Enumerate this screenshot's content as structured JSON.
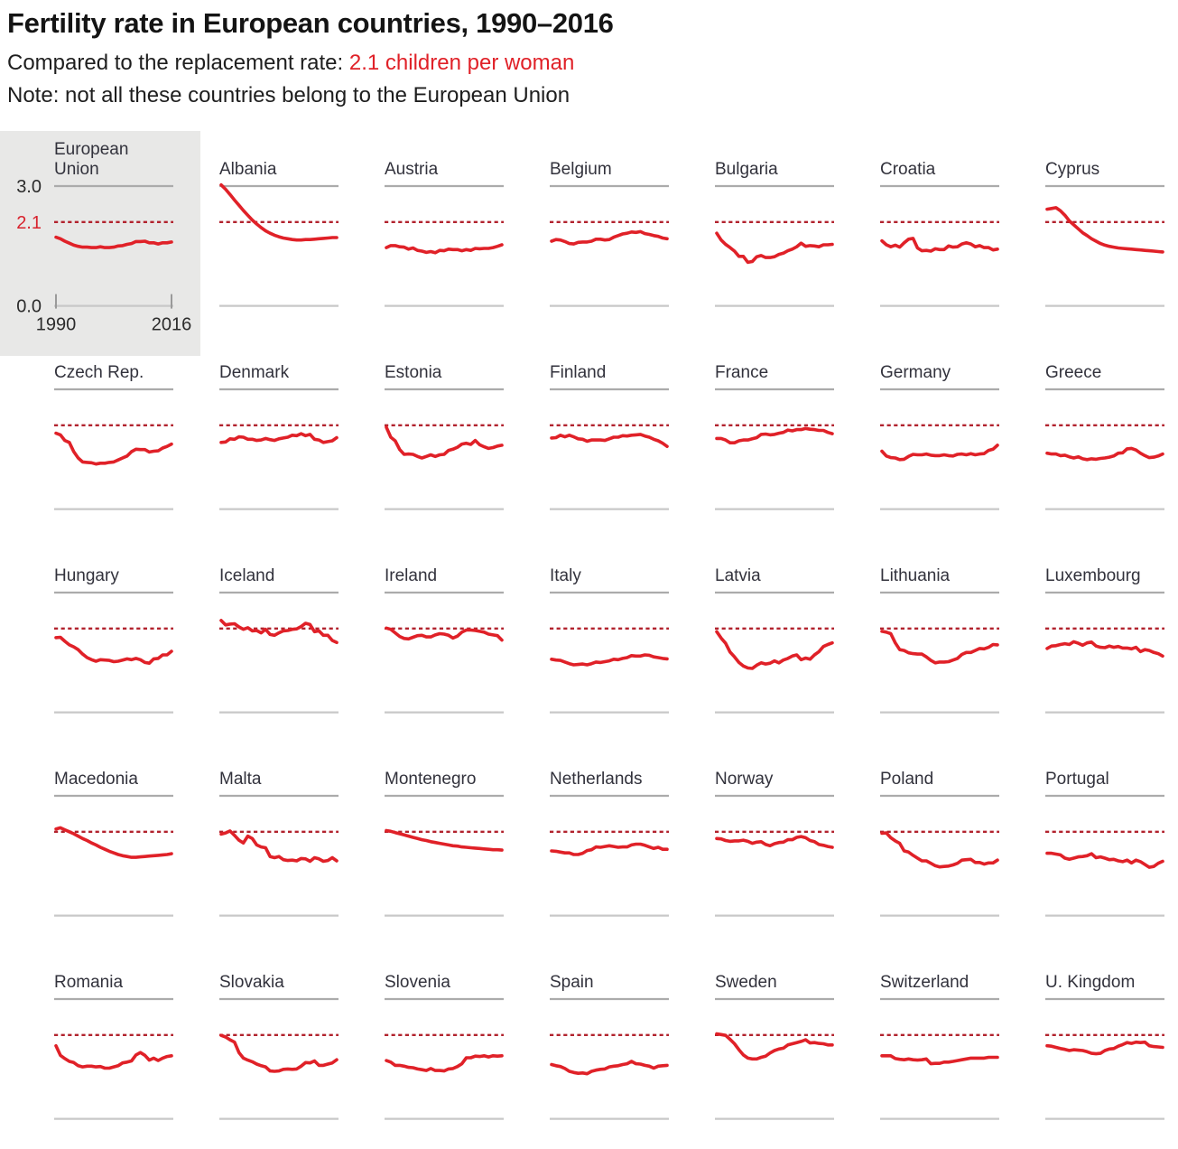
{
  "header": {
    "title": "Fertility rate in European countries, 1990–2016",
    "subtitle_prefix": "Compared to the replacement rate: ",
    "subtitle_highlight": "2.1 children per woman",
    "note": "Note: not all these countries belong to the European Union"
  },
  "colors": {
    "data_line": "#e02128",
    "replacement_line": "#b2232e",
    "accent_text": "#e02128",
    "gridline_top": "#ababab",
    "gridline_bottom": "#c8c8c8",
    "eu_panel_background": "#e8e8e7",
    "label_text": "#32323c"
  },
  "chart_data": {
    "type": "line",
    "title": "Fertility rate in European countries, 1990–2016",
    "layout": "small-multiples",
    "grid_columns": 7,
    "x_years": {
      "start": 1990,
      "end": 2016,
      "step": 1
    },
    "x_ticks": [
      "1990",
      "2016"
    ],
    "y_axis": {
      "range": [
        0.0,
        3.0
      ],
      "ticks": [
        3.0,
        2.1,
        0.0
      ],
      "labels": [
        "3.0",
        "2.1",
        "0.0"
      ]
    },
    "replacement_rate": 2.1,
    "series": [
      {
        "name": "European Union",
        "highlight": true,
        "values": [
          1.72,
          1.68,
          1.62,
          1.57,
          1.52,
          1.49,
          1.47,
          1.47,
          1.46,
          1.46,
          1.48,
          1.46,
          1.46,
          1.47,
          1.5,
          1.51,
          1.54,
          1.56,
          1.61,
          1.61,
          1.62,
          1.58,
          1.58,
          1.55,
          1.58,
          1.58,
          1.6
        ]
      },
      {
        "name": "Albania",
        "values": [
          3.03,
          2.92,
          2.79,
          2.65,
          2.52,
          2.39,
          2.27,
          2.15,
          2.05,
          1.96,
          1.88,
          1.82,
          1.77,
          1.73,
          1.7,
          1.68,
          1.66,
          1.65,
          1.65,
          1.66,
          1.66,
          1.67,
          1.68,
          1.69,
          1.7,
          1.71,
          1.71
        ]
      },
      {
        "name": "Austria",
        "values": [
          1.46,
          1.51,
          1.51,
          1.48,
          1.47,
          1.42,
          1.45,
          1.39,
          1.37,
          1.34,
          1.36,
          1.33,
          1.39,
          1.38,
          1.42,
          1.41,
          1.41,
          1.38,
          1.41,
          1.39,
          1.44,
          1.43,
          1.44,
          1.44,
          1.46,
          1.49,
          1.53
        ]
      },
      {
        "name": "Belgium",
        "values": [
          1.62,
          1.66,
          1.65,
          1.61,
          1.56,
          1.55,
          1.59,
          1.6,
          1.6,
          1.62,
          1.67,
          1.67,
          1.65,
          1.66,
          1.72,
          1.76,
          1.8,
          1.82,
          1.85,
          1.84,
          1.86,
          1.81,
          1.79,
          1.76,
          1.74,
          1.7,
          1.68
        ]
      },
      {
        "name": "Bulgaria",
        "values": [
          1.82,
          1.65,
          1.54,
          1.46,
          1.37,
          1.24,
          1.24,
          1.09,
          1.11,
          1.23,
          1.26,
          1.21,
          1.21,
          1.23,
          1.29,
          1.32,
          1.38,
          1.42,
          1.48,
          1.57,
          1.49,
          1.51,
          1.5,
          1.48,
          1.53,
          1.53,
          1.54
        ]
      },
      {
        "name": "Croatia",
        "values": [
          1.63,
          1.53,
          1.48,
          1.52,
          1.47,
          1.58,
          1.67,
          1.69,
          1.45,
          1.38,
          1.39,
          1.37,
          1.43,
          1.41,
          1.41,
          1.5,
          1.47,
          1.48,
          1.55,
          1.58,
          1.55,
          1.48,
          1.51,
          1.46,
          1.46,
          1.4,
          1.42
        ]
      },
      {
        "name": "Cyprus",
        "values": [
          2.42,
          2.44,
          2.46,
          2.38,
          2.27,
          2.13,
          2.03,
          1.93,
          1.83,
          1.76,
          1.68,
          1.62,
          1.56,
          1.52,
          1.49,
          1.47,
          1.45,
          1.44,
          1.43,
          1.42,
          1.41,
          1.4,
          1.39,
          1.38,
          1.37,
          1.36,
          1.35
        ]
      },
      {
        "name": "Czech Rep.",
        "values": [
          1.9,
          1.86,
          1.72,
          1.67,
          1.44,
          1.28,
          1.18,
          1.17,
          1.16,
          1.13,
          1.15,
          1.15,
          1.17,
          1.18,
          1.23,
          1.28,
          1.33,
          1.44,
          1.5,
          1.49,
          1.49,
          1.43,
          1.45,
          1.46,
          1.53,
          1.57,
          1.63
        ]
      },
      {
        "name": "Denmark",
        "values": [
          1.67,
          1.68,
          1.76,
          1.75,
          1.81,
          1.8,
          1.75,
          1.75,
          1.72,
          1.73,
          1.77,
          1.74,
          1.72,
          1.76,
          1.78,
          1.8,
          1.85,
          1.84,
          1.89,
          1.84,
          1.87,
          1.75,
          1.73,
          1.67,
          1.69,
          1.71,
          1.79
        ]
      },
      {
        "name": "Estonia",
        "values": [
          2.05,
          1.8,
          1.71,
          1.49,
          1.37,
          1.38,
          1.37,
          1.32,
          1.28,
          1.32,
          1.36,
          1.32,
          1.36,
          1.37,
          1.47,
          1.5,
          1.55,
          1.63,
          1.65,
          1.62,
          1.72,
          1.61,
          1.56,
          1.52,
          1.54,
          1.58,
          1.6
        ]
      },
      {
        "name": "Finland",
        "values": [
          1.78,
          1.79,
          1.85,
          1.81,
          1.85,
          1.81,
          1.76,
          1.75,
          1.7,
          1.73,
          1.73,
          1.73,
          1.72,
          1.76,
          1.8,
          1.8,
          1.84,
          1.83,
          1.85,
          1.86,
          1.87,
          1.83,
          1.8,
          1.75,
          1.71,
          1.65,
          1.57
        ]
      },
      {
        "name": "France",
        "values": [
          1.77,
          1.77,
          1.73,
          1.66,
          1.66,
          1.71,
          1.73,
          1.73,
          1.76,
          1.79,
          1.87,
          1.88,
          1.86,
          1.87,
          1.9,
          1.92,
          1.98,
          1.96,
          1.99,
          1.99,
          2.02,
          2.0,
          1.99,
          1.97,
          1.97,
          1.92,
          1.89
        ]
      },
      {
        "name": "Germany",
        "values": [
          1.45,
          1.33,
          1.29,
          1.28,
          1.24,
          1.25,
          1.32,
          1.37,
          1.36,
          1.36,
          1.38,
          1.35,
          1.34,
          1.34,
          1.36,
          1.34,
          1.33,
          1.37,
          1.38,
          1.36,
          1.39,
          1.36,
          1.38,
          1.39,
          1.47,
          1.5,
          1.6
        ]
      },
      {
        "name": "Greece",
        "values": [
          1.4,
          1.38,
          1.38,
          1.34,
          1.35,
          1.31,
          1.28,
          1.31,
          1.26,
          1.24,
          1.26,
          1.25,
          1.27,
          1.28,
          1.3,
          1.33,
          1.4,
          1.41,
          1.51,
          1.52,
          1.48,
          1.4,
          1.34,
          1.29,
          1.3,
          1.33,
          1.38
        ]
      },
      {
        "name": "Hungary",
        "values": [
          1.87,
          1.88,
          1.78,
          1.69,
          1.64,
          1.57,
          1.46,
          1.37,
          1.32,
          1.28,
          1.32,
          1.31,
          1.3,
          1.27,
          1.28,
          1.31,
          1.34,
          1.32,
          1.35,
          1.32,
          1.25,
          1.23,
          1.34,
          1.35,
          1.44,
          1.44,
          1.53
        ]
      },
      {
        "name": "Iceland",
        "values": [
          2.3,
          2.19,
          2.21,
          2.22,
          2.14,
          2.08,
          2.12,
          2.04,
          2.05,
          1.99,
          2.08,
          1.95,
          1.93,
          1.99,
          2.04,
          2.05,
          2.08,
          2.09,
          2.15,
          2.23,
          2.2,
          2.02,
          2.04,
          1.93,
          1.93,
          1.8,
          1.75
        ]
      },
      {
        "name": "Ireland",
        "values": [
          2.11,
          2.08,
          1.99,
          1.9,
          1.85,
          1.84,
          1.88,
          1.92,
          1.93,
          1.89,
          1.89,
          1.94,
          1.97,
          1.96,
          1.93,
          1.86,
          1.91,
          2.01,
          2.06,
          2.06,
          2.05,
          2.03,
          2.01,
          1.96,
          1.94,
          1.92,
          1.81
        ]
      },
      {
        "name": "Italy",
        "values": [
          1.33,
          1.31,
          1.3,
          1.26,
          1.22,
          1.19,
          1.2,
          1.21,
          1.19,
          1.22,
          1.26,
          1.25,
          1.27,
          1.29,
          1.33,
          1.32,
          1.35,
          1.37,
          1.42,
          1.41,
          1.41,
          1.44,
          1.43,
          1.39,
          1.37,
          1.35,
          1.34
        ]
      },
      {
        "name": "Latvia",
        "values": [
          2.02,
          1.86,
          1.73,
          1.51,
          1.39,
          1.25,
          1.16,
          1.11,
          1.1,
          1.18,
          1.24,
          1.21,
          1.23,
          1.29,
          1.24,
          1.31,
          1.35,
          1.41,
          1.44,
          1.32,
          1.36,
          1.33,
          1.44,
          1.52,
          1.65,
          1.7,
          1.74
        ]
      },
      {
        "name": "Lithuania",
        "values": [
          2.03,
          2.01,
          1.97,
          1.74,
          1.57,
          1.55,
          1.49,
          1.47,
          1.46,
          1.46,
          1.39,
          1.3,
          1.24,
          1.26,
          1.26,
          1.27,
          1.31,
          1.35,
          1.45,
          1.5,
          1.5,
          1.55,
          1.6,
          1.59,
          1.63,
          1.7,
          1.69
        ]
      },
      {
        "name": "Luxembourg",
        "values": [
          1.6,
          1.66,
          1.67,
          1.7,
          1.72,
          1.7,
          1.77,
          1.73,
          1.68,
          1.74,
          1.76,
          1.66,
          1.63,
          1.62,
          1.66,
          1.63,
          1.65,
          1.61,
          1.61,
          1.59,
          1.63,
          1.52,
          1.57,
          1.55,
          1.5,
          1.47,
          1.41
        ]
      },
      {
        "name": "Macedonia",
        "values": [
          2.17,
          2.2,
          2.15,
          2.1,
          2.05,
          1.99,
          1.93,
          1.88,
          1.82,
          1.77,
          1.71,
          1.66,
          1.61,
          1.57,
          1.53,
          1.5,
          1.48,
          1.46,
          1.46,
          1.47,
          1.48,
          1.49,
          1.5,
          1.51,
          1.52,
          1.53,
          1.55
        ]
      },
      {
        "name": "Malta",
        "values": [
          2.04,
          2.07,
          2.12,
          2.01,
          1.89,
          1.82,
          1.99,
          1.93,
          1.77,
          1.72,
          1.7,
          1.48,
          1.45,
          1.48,
          1.4,
          1.38,
          1.39,
          1.37,
          1.43,
          1.42,
          1.36,
          1.45,
          1.42,
          1.36,
          1.38,
          1.45,
          1.37
        ]
      },
      {
        "name": "Montenegro",
        "values": [
          2.13,
          2.11,
          2.08,
          2.05,
          2.02,
          1.99,
          1.96,
          1.93,
          1.9,
          1.88,
          1.85,
          1.83,
          1.81,
          1.79,
          1.77,
          1.75,
          1.74,
          1.72,
          1.71,
          1.7,
          1.69,
          1.68,
          1.67,
          1.66,
          1.65,
          1.65,
          1.64
        ]
      },
      {
        "name": "Netherlands",
        "values": [
          1.62,
          1.61,
          1.59,
          1.57,
          1.57,
          1.53,
          1.53,
          1.56,
          1.63,
          1.65,
          1.72,
          1.71,
          1.73,
          1.75,
          1.73,
          1.71,
          1.72,
          1.72,
          1.77,
          1.79,
          1.79,
          1.76,
          1.72,
          1.68,
          1.71,
          1.66,
          1.66
        ]
      },
      {
        "name": "Norway",
        "values": [
          1.93,
          1.92,
          1.88,
          1.86,
          1.87,
          1.87,
          1.89,
          1.86,
          1.81,
          1.84,
          1.85,
          1.78,
          1.75,
          1.8,
          1.83,
          1.84,
          1.9,
          1.9,
          1.96,
          1.98,
          1.95,
          1.88,
          1.85,
          1.78,
          1.76,
          1.73,
          1.71
        ]
      },
      {
        "name": "Poland",
        "values": [
          2.06,
          2.07,
          1.95,
          1.87,
          1.81,
          1.62,
          1.59,
          1.51,
          1.44,
          1.37,
          1.37,
          1.31,
          1.25,
          1.22,
          1.23,
          1.24,
          1.27,
          1.31,
          1.39,
          1.4,
          1.41,
          1.33,
          1.33,
          1.29,
          1.32,
          1.32,
          1.39
        ]
      },
      {
        "name": "Portugal",
        "values": [
          1.56,
          1.56,
          1.54,
          1.52,
          1.44,
          1.41,
          1.44,
          1.47,
          1.48,
          1.5,
          1.55,
          1.45,
          1.47,
          1.44,
          1.4,
          1.41,
          1.37,
          1.35,
          1.39,
          1.32,
          1.39,
          1.35,
          1.28,
          1.21,
          1.23,
          1.31,
          1.36
        ]
      },
      {
        "name": "Romania",
        "values": [
          1.83,
          1.59,
          1.51,
          1.44,
          1.41,
          1.33,
          1.3,
          1.32,
          1.32,
          1.3,
          1.31,
          1.27,
          1.27,
          1.3,
          1.33,
          1.4,
          1.42,
          1.45,
          1.6,
          1.66,
          1.59,
          1.47,
          1.52,
          1.46,
          1.52,
          1.56,
          1.58
        ]
      },
      {
        "name": "Slovakia",
        "values": [
          2.09,
          2.05,
          1.98,
          1.92,
          1.66,
          1.52,
          1.47,
          1.43,
          1.37,
          1.33,
          1.3,
          1.2,
          1.19,
          1.2,
          1.24,
          1.25,
          1.24,
          1.25,
          1.32,
          1.41,
          1.4,
          1.45,
          1.34,
          1.34,
          1.37,
          1.4,
          1.48
        ]
      },
      {
        "name": "Slovenia",
        "values": [
          1.46,
          1.42,
          1.34,
          1.34,
          1.32,
          1.29,
          1.28,
          1.25,
          1.23,
          1.21,
          1.26,
          1.21,
          1.21,
          1.2,
          1.25,
          1.26,
          1.31,
          1.38,
          1.53,
          1.53,
          1.57,
          1.56,
          1.58,
          1.55,
          1.58,
          1.57,
          1.58
        ]
      },
      {
        "name": "Spain",
        "values": [
          1.36,
          1.33,
          1.31,
          1.26,
          1.19,
          1.16,
          1.14,
          1.15,
          1.13,
          1.19,
          1.22,
          1.24,
          1.25,
          1.3,
          1.32,
          1.33,
          1.36,
          1.38,
          1.44,
          1.38,
          1.37,
          1.34,
          1.32,
          1.27,
          1.32,
          1.33,
          1.34
        ]
      },
      {
        "name": "Sweden",
        "values": [
          2.13,
          2.11,
          2.09,
          1.99,
          1.88,
          1.73,
          1.6,
          1.52,
          1.5,
          1.5,
          1.54,
          1.57,
          1.65,
          1.71,
          1.75,
          1.77,
          1.85,
          1.88,
          1.91,
          1.94,
          1.98,
          1.9,
          1.91,
          1.89,
          1.88,
          1.85,
          1.85
        ]
      },
      {
        "name": "Switzerland",
        "values": [
          1.58,
          1.58,
          1.58,
          1.51,
          1.49,
          1.48,
          1.5,
          1.48,
          1.47,
          1.48,
          1.5,
          1.38,
          1.39,
          1.39,
          1.42,
          1.42,
          1.44,
          1.46,
          1.48,
          1.5,
          1.52,
          1.52,
          1.52,
          1.52,
          1.54,
          1.54,
          1.54
        ]
      },
      {
        "name": "U. Kingdom",
        "values": [
          1.83,
          1.82,
          1.79,
          1.76,
          1.74,
          1.71,
          1.73,
          1.72,
          1.71,
          1.68,
          1.64,
          1.63,
          1.64,
          1.71,
          1.75,
          1.76,
          1.82,
          1.86,
          1.91,
          1.89,
          1.92,
          1.91,
          1.92,
          1.83,
          1.81,
          1.8,
          1.79
        ]
      }
    ]
  }
}
